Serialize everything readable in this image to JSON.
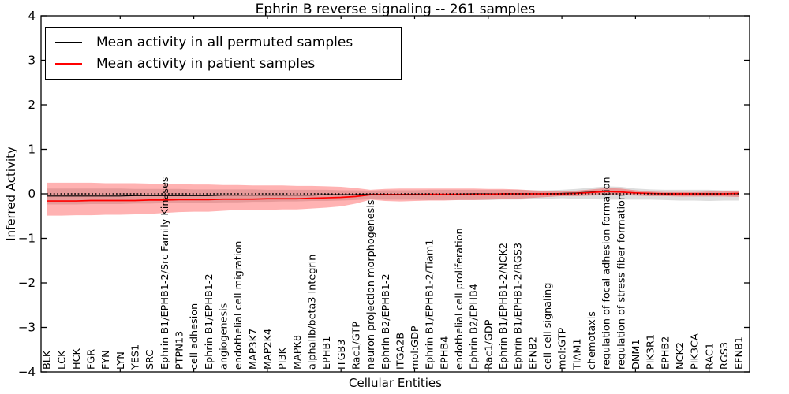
{
  "title": "Ephrin B reverse signaling -- 261 samples",
  "axes": {
    "ylabel": "Inferred Activity",
    "xlabel": "Cellular Entities",
    "ytick_labels": [
      "4",
      "3",
      "2",
      "1",
      "0",
      "−1",
      "−2",
      "−3",
      "−4"
    ]
  },
  "legend": {
    "entries": [
      {
        "label": "Mean activity in all permuted samples",
        "color": "#000000"
      },
      {
        "label": "Mean activity in patient samples",
        "color": "#ff0000"
      }
    ]
  },
  "colors": {
    "background": "#ffffff",
    "axis": "#000000",
    "patient_line": "#ff0000",
    "permuted_line": "#000000",
    "patient_band": "#ff0000",
    "permuted_band": "#bbbbbb",
    "zero_line": "#000000"
  },
  "chart_data": {
    "type": "line",
    "title": "Ephrin B reverse signaling -- 261 samples",
    "xlabel": "Cellular Entities",
    "ylabel": "Inferred Activity",
    "ylim": [
      -4,
      4
    ],
    "yticks": [
      4,
      3,
      2,
      1,
      0,
      -1,
      -2,
      -3,
      -4
    ],
    "grid": false,
    "zero_line_style": "dotted",
    "legend_position": "upper left",
    "categories": [
      "BLK",
      "LCK",
      "HCK",
      "FGR",
      "FYN",
      "LYN",
      "YES1",
      "SRC",
      "Ephrin B1/EPHB1-2/Src Family Kinases",
      "PTPN13",
      "cell adhesion",
      "Ephrin B1/EPHB1-2",
      "angiogenesis",
      "endothelial cell migration",
      "MAP3K7",
      "MAP2K4",
      "PI3K",
      "MAPK8",
      "alphaIIb/beta3 Integrin",
      "EPHB1",
      "ITGB3",
      "Rac1/GTP",
      "neuron projection morphogenesis",
      "Ephrin B2/EPHB1-2",
      "ITGA2B",
      "mol:GDP",
      "Ephrin B1/EPHB1-2/Tiam1",
      "EPHB4",
      "endothelial cell proliferation",
      "Ephrin B2/EPHB4",
      "Rac1/GDP",
      "Ephrin B1/EPHB1-2/NCK2",
      "Ephrin B1/EPHB1-2/RGS3",
      "EFNB2",
      "cell-cell signaling",
      "mol:GTP",
      "TIAM1",
      "chemotaxis",
      "regulation of focal adhesion formation",
      "regulation of stress fiber formation",
      "DNM1",
      "PIK3R1",
      "EPHB2",
      "NCK2",
      "PIK3CA",
      "RAC1",
      "RGS3",
      "EFNB1"
    ],
    "series": [
      {
        "name": "Mean activity in all permuted samples",
        "type": "line",
        "color": "#000000",
        "width": 1.2,
        "values": [
          -0.05,
          -0.05,
          -0.05,
          -0.05,
          -0.05,
          -0.05,
          -0.04,
          -0.04,
          -0.04,
          -0.04,
          -0.04,
          -0.04,
          -0.03,
          -0.03,
          -0.03,
          -0.03,
          -0.03,
          -0.03,
          -0.03,
          -0.02,
          -0.02,
          -0.02,
          -0.01,
          -0.01,
          -0.01,
          -0.01,
          -0.01,
          -0.01,
          -0.01,
          0,
          0,
          0,
          0,
          0,
          0,
          0.01,
          0.02,
          0.04,
          0.05,
          0.04,
          0.02,
          0.01,
          0,
          0,
          0,
          0,
          0,
          0
        ]
      },
      {
        "name": "Mean activity in patient samples",
        "type": "line",
        "color": "#ff0000",
        "width": 1.7,
        "values": [
          -0.16,
          -0.16,
          -0.16,
          -0.15,
          -0.15,
          -0.15,
          -0.15,
          -0.14,
          -0.14,
          -0.13,
          -0.13,
          -0.13,
          -0.12,
          -0.12,
          -0.12,
          -0.11,
          -0.11,
          -0.11,
          -0.1,
          -0.09,
          -0.08,
          -0.06,
          -0.02,
          -0.02,
          -0.02,
          -0.02,
          -0.01,
          -0.01,
          -0.01,
          -0.01,
          -0.01,
          0,
          0,
          0,
          0,
          0,
          0.01,
          0.03,
          0.05,
          0.04,
          0.02,
          0.01,
          0,
          0,
          0,
          0,
          0,
          0.01
        ]
      },
      {
        "name": "Permuted samples spread",
        "type": "band",
        "color": "#bbbbbb",
        "opacity": 0.5,
        "upper": [
          0.12,
          0.12,
          0.12,
          0.12,
          0.12,
          0.12,
          0.11,
          0.11,
          0.11,
          0.11,
          0.1,
          0.1,
          0.1,
          0.1,
          0.1,
          0.09,
          0.09,
          0.09,
          0.09,
          0.09,
          0.08,
          0.08,
          0.07,
          0.08,
          0.08,
          0.08,
          0.09,
          0.09,
          0.09,
          0.09,
          0.09,
          0.09,
          0.09,
          0.08,
          0.08,
          0.09,
          0.11,
          0.14,
          0.17,
          0.16,
          0.12,
          0.1,
          0.09,
          0.09,
          0.09,
          0.09,
          0.08,
          0.08
        ],
        "lower": [
          -0.24,
          -0.24,
          -0.24,
          -0.23,
          -0.23,
          -0.23,
          -0.22,
          -0.22,
          -0.21,
          -0.2,
          -0.2,
          -0.2,
          -0.19,
          -0.19,
          -0.18,
          -0.18,
          -0.17,
          -0.17,
          -0.16,
          -0.16,
          -0.15,
          -0.14,
          -0.12,
          -0.13,
          -0.13,
          -0.13,
          -0.14,
          -0.14,
          -0.14,
          -0.14,
          -0.14,
          -0.13,
          -0.13,
          -0.12,
          -0.11,
          -0.1,
          -0.11,
          -0.12,
          -0.13,
          -0.13,
          -0.13,
          -0.13,
          -0.14,
          -0.15,
          -0.15,
          -0.16,
          -0.15,
          -0.15
        ]
      },
      {
        "name": "Patient samples spread",
        "type": "band",
        "color": "#ff0000",
        "opacity": 0.3,
        "upper": [
          0.25,
          0.25,
          0.25,
          0.25,
          0.24,
          0.24,
          0.24,
          0.23,
          0.22,
          0.22,
          0.21,
          0.21,
          0.2,
          0.2,
          0.19,
          0.19,
          0.19,
          0.18,
          0.18,
          0.17,
          0.16,
          0.13,
          0.09,
          0.11,
          0.12,
          0.12,
          0.12,
          0.12,
          0.12,
          0.12,
          0.11,
          0.11,
          0.1,
          0.08,
          0.06,
          0.05,
          0.07,
          0.1,
          0.13,
          0.12,
          0.08,
          0.05,
          0.04,
          0.04,
          0.04,
          0.05,
          0.05,
          0.07
        ],
        "lower": [
          -0.49,
          -0.49,
          -0.48,
          -0.48,
          -0.47,
          -0.47,
          -0.46,
          -0.45,
          -0.43,
          -0.41,
          -0.4,
          -0.4,
          -0.38,
          -0.36,
          -0.37,
          -0.36,
          -0.35,
          -0.35,
          -0.33,
          -0.31,
          -0.28,
          -0.22,
          -0.13,
          -0.16,
          -0.17,
          -0.16,
          -0.15,
          -0.15,
          -0.14,
          -0.14,
          -0.13,
          -0.12,
          -0.11,
          -0.09,
          -0.07,
          -0.05,
          -0.05,
          -0.04,
          -0.03,
          -0.03,
          -0.04,
          -0.05,
          -0.05,
          -0.06,
          -0.06,
          -0.06,
          -0.06,
          -0.07
        ]
      }
    ]
  }
}
